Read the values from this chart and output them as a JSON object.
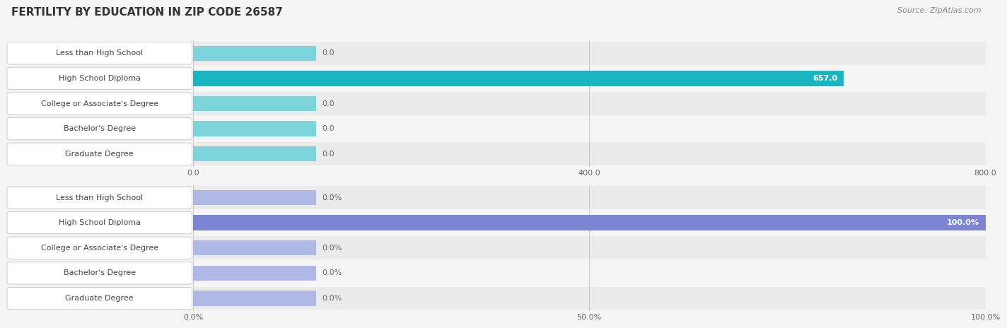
{
  "title": "FERTILITY BY EDUCATION IN ZIP CODE 26587",
  "source": "Source: ZipAtlas.com",
  "categories": [
    "Less than High School",
    "High School Diploma",
    "College or Associate's Degree",
    "Bachelor's Degree",
    "Graduate Degree"
  ],
  "label_color": "#444444",
  "chart1": {
    "values": [
      0.0,
      657.0,
      0.0,
      0.0,
      0.0
    ],
    "max_value": 800.0,
    "tick_values": [
      0.0,
      400.0,
      800.0
    ],
    "tick_labels": [
      "0.0",
      "400.0",
      "800.0"
    ],
    "bar_color_highlight": "#1ab5c0",
    "bar_color_normal": "#7dd4da",
    "value_label_inside_color": "#ffffff",
    "value_label_outside_color": "#666666"
  },
  "chart2": {
    "values": [
      0.0,
      100.0,
      0.0,
      0.0,
      0.0
    ],
    "max_value": 100.0,
    "tick_values": [
      0.0,
      50.0,
      100.0
    ],
    "tick_labels": [
      "0.0%",
      "50.0%",
      "100.0%"
    ],
    "bar_color_highlight": "#7b85d4",
    "bar_color_normal": "#b0b8e8",
    "value_label_inside_color": "#ffffff",
    "value_label_outside_color": "#666666"
  },
  "background_color": "#f5f5f5",
  "row_bg_odd": "#ebebeb",
  "row_bg_even": "#f5f5f5",
  "title_color": "#333333",
  "title_fontsize": 11,
  "label_fontsize": 8.0,
  "value_fontsize": 8.0,
  "source_fontsize": 8,
  "source_color": "#888888"
}
